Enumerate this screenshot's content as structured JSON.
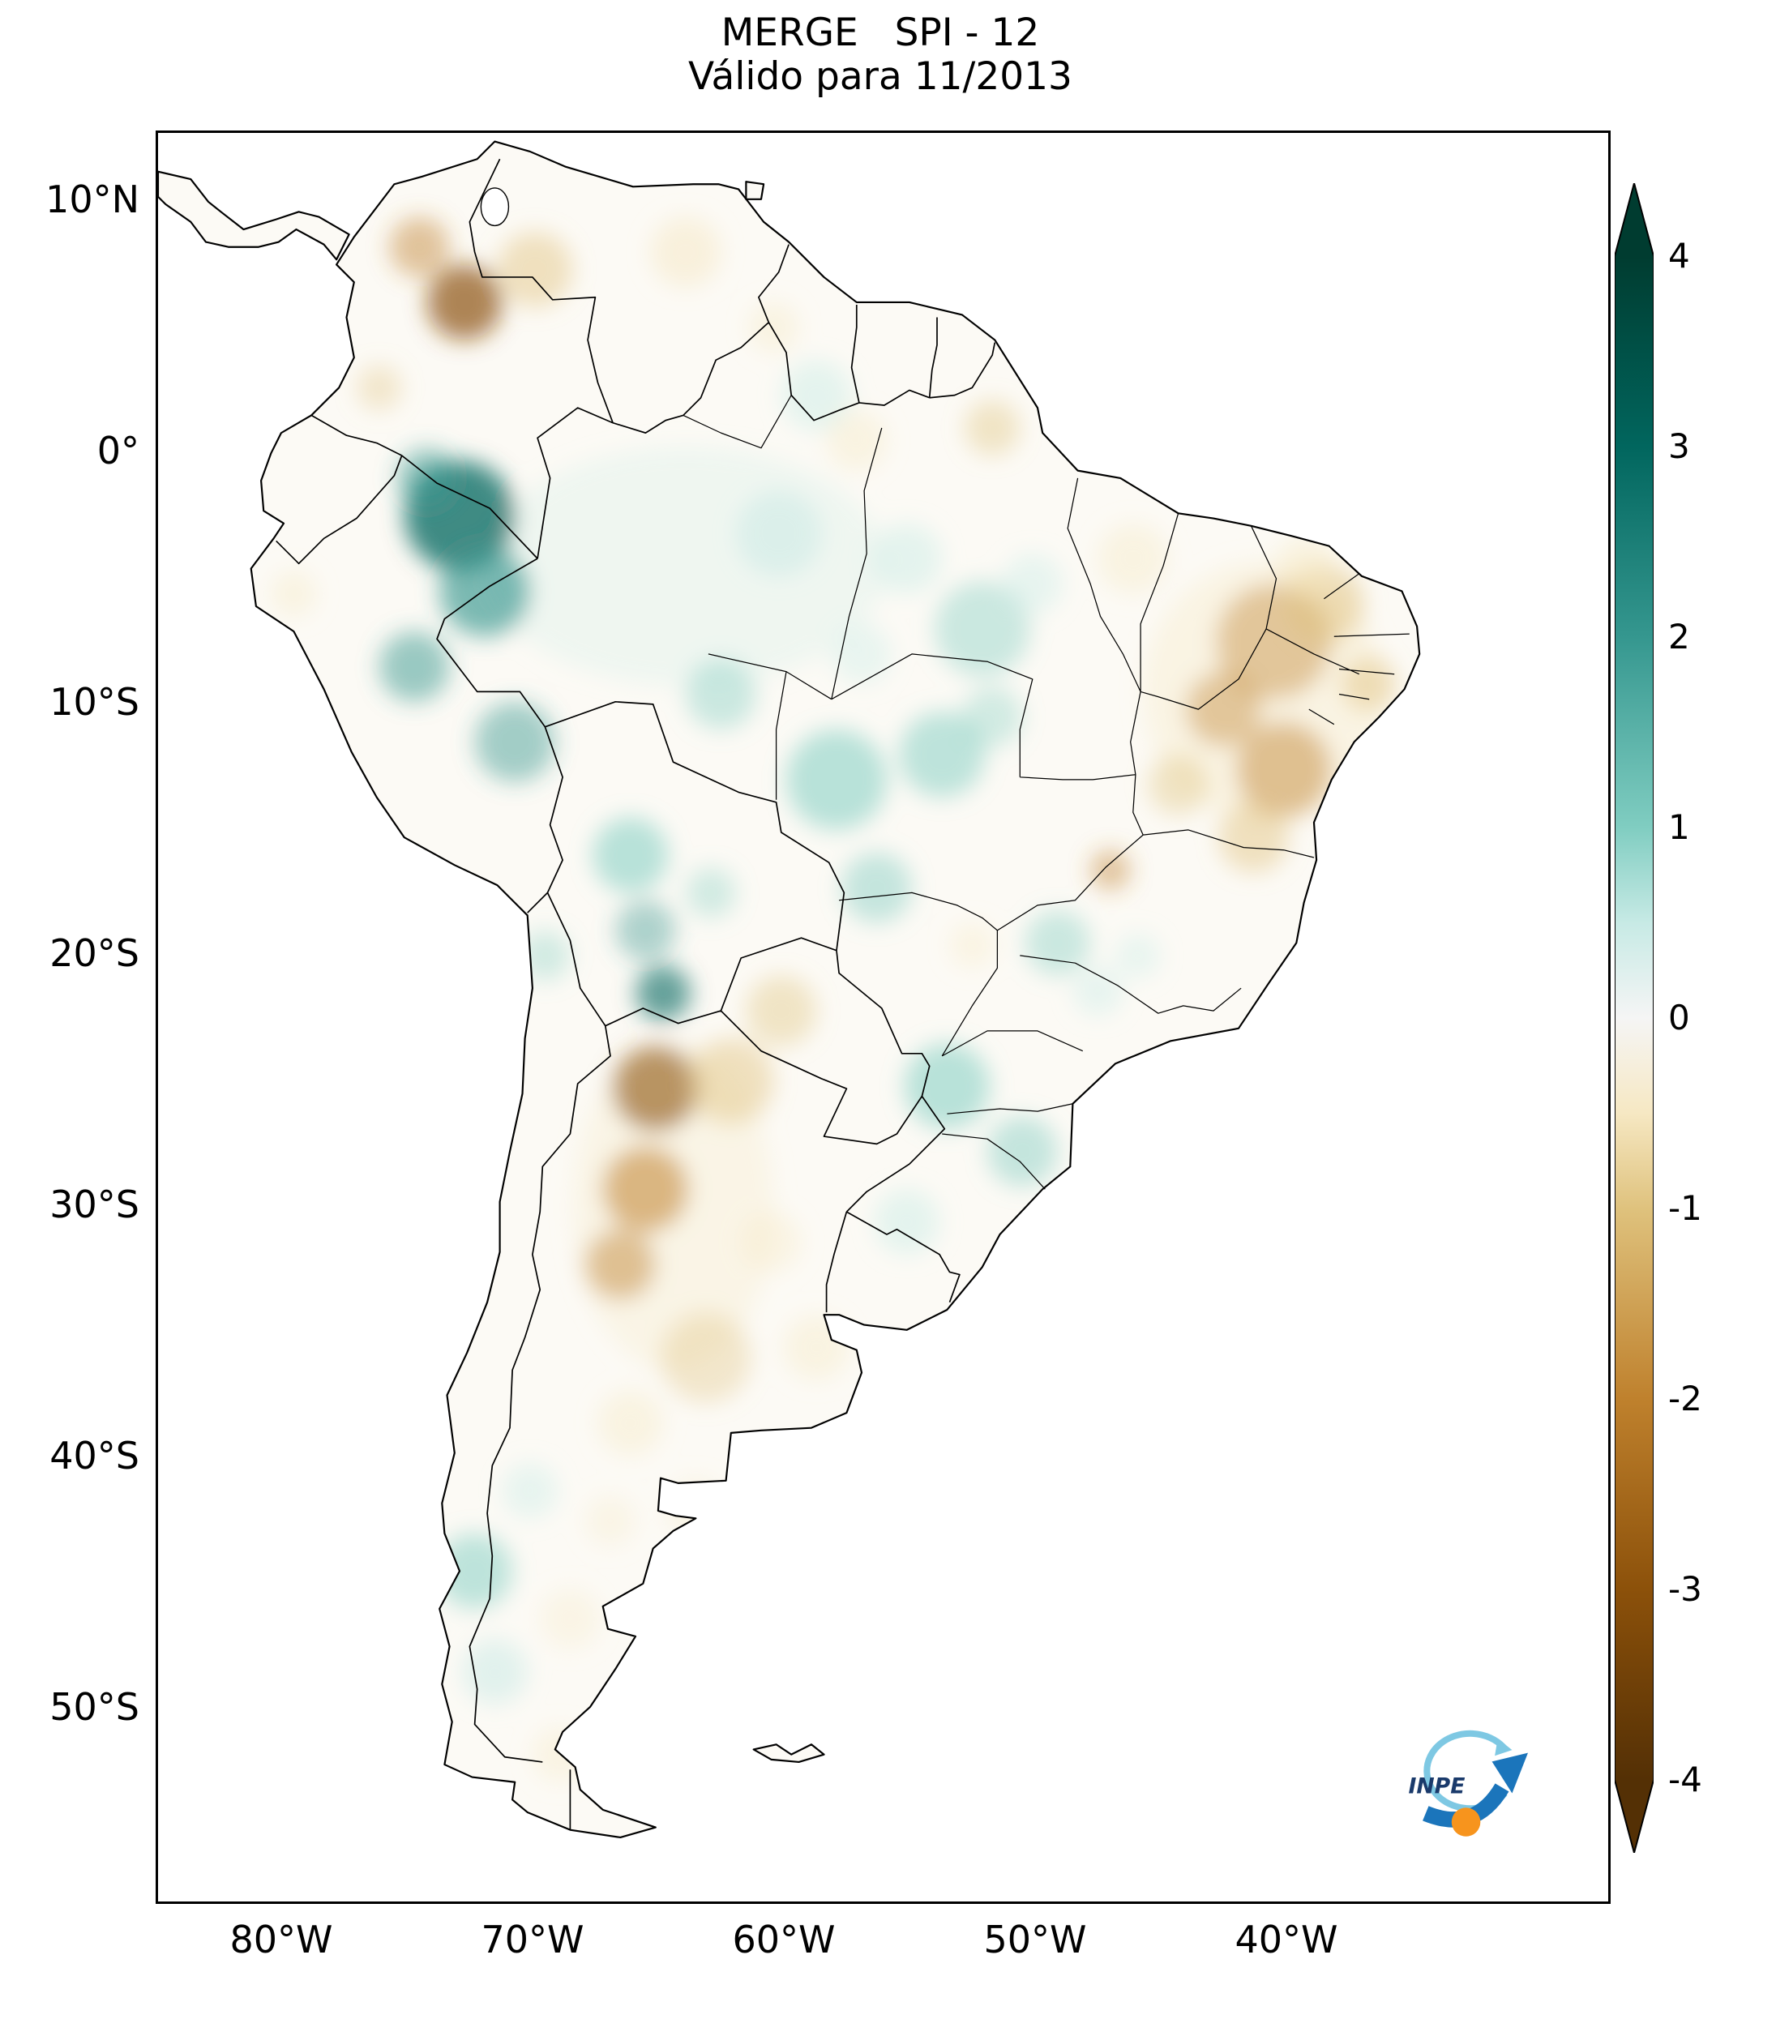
{
  "title": {
    "line1": "MERGE   SPI - 12",
    "line2": "Válido para 11/2013"
  },
  "axes": {
    "y_ticks": [
      "10°N",
      "0°",
      "10°S",
      "20°S",
      "30°S",
      "40°S",
      "50°S"
    ],
    "x_ticks": [
      "80°W",
      "70°W",
      "60°W",
      "50°W",
      "40°W"
    ]
  },
  "colorbar": {
    "tick_labels": [
      "4",
      "3",
      "2",
      "1",
      "0",
      "-1",
      "-2",
      "-3",
      "-4"
    ],
    "stops": [
      {
        "o": "0%",
        "c": "#003c30"
      },
      {
        "o": "4.4%",
        "c": "#003c30"
      },
      {
        "o": "15.8%",
        "c": "#01665e"
      },
      {
        "o": "27.2%",
        "c": "#35978f"
      },
      {
        "o": "38.6%",
        "c": "#80cdc1"
      },
      {
        "o": "44.3%",
        "c": "#c7eae5"
      },
      {
        "o": "50%",
        "c": "#f5f5f5"
      },
      {
        "o": "55.7%",
        "c": "#f6e8c3"
      },
      {
        "o": "61.4%",
        "c": "#dfc27d"
      },
      {
        "o": "72.8%",
        "c": "#bf812d"
      },
      {
        "o": "84.2%",
        "c": "#8c510a"
      },
      {
        "o": "95.6%",
        "c": "#543005"
      },
      {
        "o": "100%",
        "c": "#543005"
      }
    ]
  },
  "logo": {
    "text": "INPE",
    "arrow_color": "#1b75bb",
    "ring_color": "#7ec8e3",
    "dot_color": "#f7941d"
  },
  "chart_data": {
    "type": "heatmap",
    "title": "MERGE   SPI - 12",
    "subtitle": "Válido para 11/2013",
    "region": "South America",
    "x_axis": {
      "ticks": [
        "80°W",
        "70°W",
        "60°W",
        "50°W",
        "40°W"
      ]
    },
    "y_axis": {
      "ticks": [
        "10°N",
        "0°",
        "10°S",
        "20°S",
        "30°S",
        "40°S",
        "50°S"
      ]
    },
    "colorbar": {
      "variable": "SPI-12",
      "range": [
        -4,
        4
      ],
      "ticks": [
        4,
        3,
        2,
        1,
        0,
        -1,
        -2,
        -3,
        -4
      ],
      "extend": "both",
      "palette_top_to_bottom": [
        "#003c30",
        "#01665e",
        "#35978f",
        "#80cdc1",
        "#c7eae5",
        "#f5f5f5",
        "#f6e8c3",
        "#dfc27d",
        "#bf812d",
        "#8c510a",
        "#543005"
      ],
      "positive_color_meaning": "wet (teal/green)",
      "negative_color_meaning": "dry (tan/brown)"
    },
    "grid": false,
    "notable_anomalies": [
      {
        "region": "western Amazon (eastern Peru / NW Brazil)",
        "spi_estimate": 2.5
      },
      {
        "region": "southern Bolivia highlands",
        "spi_estimate": 2
      },
      {
        "region": "central Brazil (Mato Grosso)",
        "spi_estimate": 1.5
      },
      {
        "region": "southern Brazil / coastal south",
        "spi_estimate": 1
      },
      {
        "region": "southern Chile / northern Patagonia",
        "spi_estimate": 1.5
      },
      {
        "region": "northern Colombia / western Venezuela border",
        "spi_estimate": -2.5
      },
      {
        "region": "northeast Brazil (sertão / Bahia interior)",
        "spi_estimate": -1.5
      },
      {
        "region": "northwest-central Argentina (Salta to Cuyo/Córdoba)",
        "spi_estimate": -2.5
      },
      {
        "region": "Paraguay / Gran Chaco",
        "spi_estimate": -1.5
      },
      {
        "region": "central Argentina pampas",
        "spi_estimate": -1
      }
    ]
  }
}
